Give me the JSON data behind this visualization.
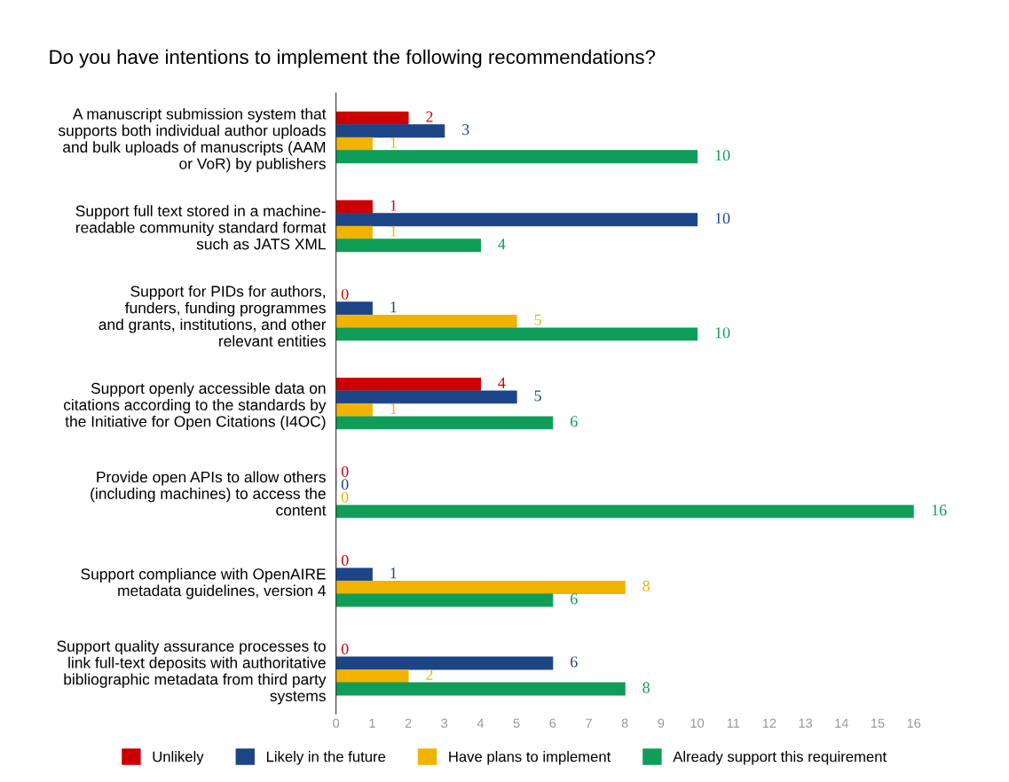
{
  "chart_data": {
    "type": "bar",
    "orientation": "horizontal",
    "title": "Do you have intentions to implement the following recommendations?",
    "categories": [
      "A manuscript submission system that\nsupports both individual author uploads\nand bulk uploads of manuscripts (AAM\nor VoR) by publishers",
      "Support full text stored in a machine-\nreadable community standard format\nsuch as JATS XML",
      "Support for PIDs for authors,\nfunders, funding programmes\nand grants, institutions, and other\nrelevant entities",
      "Support openly accessible data on\ncitations according to the standards by\nthe Initiative for Open Citations (I4OC)",
      "Provide open APIs to allow others\n(including machines) to access the\ncontent",
      "Support compliance with OpenAIRE\nmetadata guidelines, version 4",
      "Support quality assurance processes to\nlink full-text deposits with authoritative\nbibliographic metadata from third party\nsystems"
    ],
    "series": [
      {
        "name": "Unlikely",
        "color": "#cc0000",
        "values": [
          2,
          1,
          0,
          4,
          0,
          0,
          0
        ]
      },
      {
        "name": "Likely in the future",
        "color": "#1c4587",
        "values": [
          3,
          10,
          1,
          5,
          0,
          1,
          6
        ]
      },
      {
        "name": "Have plans to implement",
        "color": "#f1b300",
        "values": [
          1,
          1,
          5,
          1,
          0,
          8,
          2
        ]
      },
      {
        "name": "Already support this requirement",
        "color": "#0f9d58",
        "values": [
          10,
          4,
          10,
          6,
          16,
          6,
          8
        ]
      }
    ],
    "xlim": [
      0,
      16
    ],
    "xticks": [
      0,
      1,
      2,
      3,
      4,
      5,
      6,
      7,
      8,
      9,
      10,
      11,
      12,
      13,
      14,
      15,
      16
    ],
    "data_labels": true,
    "legend": "bottom",
    "grid": false
  }
}
